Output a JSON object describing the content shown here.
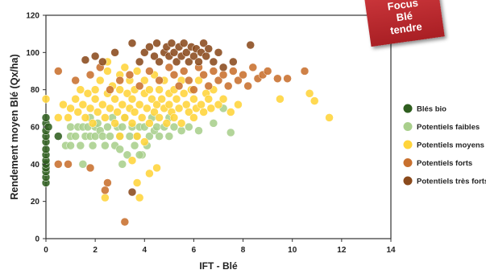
{
  "badge": {
    "line1": "Focus",
    "line2": "Blé",
    "line3": "tendre"
  },
  "colors": {
    "bio": "#2f5e1f",
    "faibles": "#a9cf8c",
    "moyens": "#ffd43a",
    "forts": "#c8702e",
    "tres_forts": "#8a4a1c"
  },
  "chart_data": {
    "type": "scatter",
    "title": "",
    "xlabel": "IFT - Blé",
    "ylabel": "Rendement moyen Blé (Qx/ha)",
    "xlim": [
      0,
      14
    ],
    "ylim": [
      0,
      120
    ],
    "xticks": [
      0,
      2,
      4,
      6,
      8,
      10,
      12,
      14
    ],
    "yticks": [
      0,
      20,
      40,
      60,
      80,
      100,
      120
    ],
    "grid": false,
    "legend_position": "right",
    "series": [
      {
        "name": "Blés bio",
        "color": "#2f5e1f",
        "points": [
          [
            0,
            30
          ],
          [
            0,
            33
          ],
          [
            0,
            36
          ],
          [
            0,
            38
          ],
          [
            0,
            40
          ],
          [
            0,
            42
          ],
          [
            0,
            45
          ],
          [
            0,
            48
          ],
          [
            0,
            52
          ],
          [
            0,
            55
          ],
          [
            0,
            58
          ],
          [
            0,
            62
          ],
          [
            0,
            65
          ],
          [
            0.5,
            55
          ],
          [
            0.1,
            60
          ]
        ]
      },
      {
        "name": "Potentiels faibles",
        "color": "#a9cf8c",
        "points": [
          [
            0.8,
            50
          ],
          [
            1,
            50
          ],
          [
            1,
            55
          ],
          [
            1,
            60
          ],
          [
            1.2,
            55
          ],
          [
            1.3,
            60
          ],
          [
            1.4,
            50
          ],
          [
            1.5,
            60
          ],
          [
            1.6,
            55
          ],
          [
            1.7,
            60
          ],
          [
            1.8,
            55
          ],
          [
            1.8,
            65
          ],
          [
            1.9,
            50
          ],
          [
            2,
            55
          ],
          [
            2,
            60
          ],
          [
            2.1,
            62
          ],
          [
            2.2,
            58
          ],
          [
            2.3,
            55
          ],
          [
            2.4,
            50
          ],
          [
            2.5,
            60
          ],
          [
            2.6,
            55
          ],
          [
            2.7,
            65
          ],
          [
            2.8,
            50
          ],
          [
            2.9,
            60
          ],
          [
            3,
            48
          ],
          [
            3,
            55
          ],
          [
            3.1,
            60
          ],
          [
            3.2,
            65
          ],
          [
            3.3,
            45
          ],
          [
            3.4,
            55
          ],
          [
            3.5,
            60
          ],
          [
            3.6,
            50
          ],
          [
            3.7,
            55
          ],
          [
            3.8,
            60
          ],
          [
            3.9,
            45
          ],
          [
            4,
            60
          ],
          [
            4.1,
            50
          ],
          [
            4.2,
            55
          ],
          [
            4.3,
            65
          ],
          [
            4.4,
            58
          ],
          [
            4.5,
            60
          ],
          [
            4.6,
            55
          ],
          [
            4.8,
            60
          ],
          [
            5,
            55
          ],
          [
            5,
            65
          ],
          [
            5.2,
            60
          ],
          [
            5.5,
            58
          ],
          [
            5.8,
            60
          ],
          [
            6.2,
            58
          ],
          [
            6.8,
            62
          ],
          [
            7.2,
            70
          ],
          [
            7.5,
            57
          ],
          [
            3.1,
            40
          ],
          [
            1.5,
            40
          ],
          [
            3.8,
            45
          ]
        ]
      },
      {
        "name": "Potentiels moyens",
        "color": "#ffd43a",
        "points": [
          [
            0,
            75
          ],
          [
            0.5,
            65
          ],
          [
            0.7,
            72
          ],
          [
            0.9,
            65
          ],
          [
            1,
            70
          ],
          [
            1.2,
            75
          ],
          [
            1.3,
            68
          ],
          [
            1.4,
            80
          ],
          [
            1.5,
            72
          ],
          [
            1.6,
            65
          ],
          [
            1.7,
            78
          ],
          [
            1.8,
            70
          ],
          [
            1.9,
            62
          ],
          [
            2,
            75
          ],
          [
            2,
            80
          ],
          [
            2.1,
            68
          ],
          [
            2.2,
            85
          ],
          [
            2.3,
            72
          ],
          [
            2.4,
            65
          ],
          [
            2.5,
            78
          ],
          [
            2.5,
            90
          ],
          [
            2.6,
            70
          ],
          [
            2.7,
            82
          ],
          [
            2.8,
            75
          ],
          [
            2.8,
            62
          ],
          [
            2.9,
            68
          ],
          [
            3,
            80
          ],
          [
            3,
            88
          ],
          [
            3.1,
            72
          ],
          [
            3.2,
            65
          ],
          [
            3.3,
            78
          ],
          [
            3.4,
            85
          ],
          [
            3.4,
            70
          ],
          [
            3.5,
            62
          ],
          [
            3.5,
            75
          ],
          [
            3.6,
            80
          ],
          [
            3.6,
            68
          ],
          [
            3.7,
            90
          ],
          [
            3.7,
            55
          ],
          [
            3.8,
            72
          ],
          [
            3.9,
            65
          ],
          [
            4,
            78
          ],
          [
            4,
            85
          ],
          [
            4.1,
            70
          ],
          [
            4.2,
            62
          ],
          [
            4.2,
            80
          ],
          [
            4.3,
            75
          ],
          [
            4.4,
            68
          ],
          [
            4.4,
            88
          ],
          [
            4.5,
            72
          ],
          [
            4.6,
            65
          ],
          [
            4.6,
            80
          ],
          [
            4.7,
            75
          ],
          [
            4.8,
            70
          ],
          [
            4.8,
            85
          ],
          [
            4.9,
            62
          ],
          [
            5,
            78
          ],
          [
            5,
            72
          ],
          [
            5.1,
            68
          ],
          [
            5.2,
            80
          ],
          [
            5.2,
            65
          ],
          [
            5.3,
            75
          ],
          [
            5.4,
            70
          ],
          [
            5.5,
            85
          ],
          [
            5.5,
            62
          ],
          [
            5.6,
            78
          ],
          [
            5.7,
            72
          ],
          [
            5.8,
            68
          ],
          [
            5.9,
            80
          ],
          [
            6,
            75
          ],
          [
            6,
            65
          ],
          [
            6.1,
            70
          ],
          [
            6.2,
            85
          ],
          [
            6.3,
            72
          ],
          [
            6.4,
            68
          ],
          [
            6.5,
            78
          ],
          [
            6.6,
            75
          ],
          [
            6.7,
            70
          ],
          [
            6.8,
            80
          ],
          [
            7,
            72
          ],
          [
            7.2,
            75
          ],
          [
            7.5,
            68
          ],
          [
            7.8,
            72
          ],
          [
            2.5,
            95
          ],
          [
            3.2,
            92
          ],
          [
            4.2,
            35
          ],
          [
            3.8,
            22
          ],
          [
            3.7,
            30
          ],
          [
            2.4,
            22
          ],
          [
            3.5,
            42
          ],
          [
            4.5,
            38
          ],
          [
            9.5,
            75
          ],
          [
            10.7,
            78
          ],
          [
            10.9,
            74
          ],
          [
            11.5,
            65
          ],
          [
            3,
            55
          ],
          [
            4,
            52
          ]
        ]
      },
      {
        "name": "Potentiels forts",
        "color": "#c8702e",
        "points": [
          [
            0.5,
            90
          ],
          [
            1.2,
            85
          ],
          [
            1.8,
            88
          ],
          [
            2.2,
            92
          ],
          [
            2.6,
            80
          ],
          [
            3,
            85
          ],
          [
            3.4,
            88
          ],
          [
            3.8,
            82
          ],
          [
            4.2,
            90
          ],
          [
            4.6,
            85
          ],
          [
            5,
            92
          ],
          [
            5.2,
            88
          ],
          [
            5.4,
            82
          ],
          [
            5.6,
            90
          ],
          [
            5.8,
            85
          ],
          [
            6,
            80
          ],
          [
            6.2,
            92
          ],
          [
            6.4,
            88
          ],
          [
            6.6,
            82
          ],
          [
            6.8,
            90
          ],
          [
            7,
            85
          ],
          [
            7.2,
            88
          ],
          [
            7.4,
            82
          ],
          [
            7.6,
            90
          ],
          [
            7.8,
            85
          ],
          [
            8,
            88
          ],
          [
            8.2,
            82
          ],
          [
            8.4,
            92
          ],
          [
            8.6,
            86
          ],
          [
            8.8,
            88
          ],
          [
            9,
            90
          ],
          [
            9.4,
            86
          ],
          [
            9.8,
            86
          ],
          [
            10.5,
            90
          ],
          [
            0.5,
            40
          ],
          [
            0.9,
            40
          ],
          [
            1.8,
            38
          ],
          [
            2.5,
            30
          ],
          [
            2.4,
            26
          ],
          [
            3.2,
            9
          ]
        ]
      },
      {
        "name": "Potentiels très forts",
        "color": "#8a4a1c",
        "points": [
          [
            2.3,
            95
          ],
          [
            2.8,
            100
          ],
          [
            3.5,
            105
          ],
          [
            3.8,
            95
          ],
          [
            4,
            100
          ],
          [
            4.2,
            103
          ],
          [
            4.4,
            98
          ],
          [
            4.5,
            105
          ],
          [
            4.6,
            95
          ],
          [
            4.8,
            100
          ],
          [
            4.9,
            103
          ],
          [
            5,
            98
          ],
          [
            5.1,
            105
          ],
          [
            5.2,
            100
          ],
          [
            5.3,
            95
          ],
          [
            5.4,
            103
          ],
          [
            5.5,
            98
          ],
          [
            5.6,
            105
          ],
          [
            5.7,
            100
          ],
          [
            5.8,
            95
          ],
          [
            5.9,
            103
          ],
          [
            6,
            98
          ],
          [
            6.1,
            102
          ],
          [
            6.2,
            95
          ],
          [
            6.3,
            100
          ],
          [
            6.4,
            105
          ],
          [
            6.5,
            98
          ],
          [
            6.6,
            102
          ],
          [
            6.8,
            95
          ],
          [
            7,
            100
          ],
          [
            7.2,
            92
          ],
          [
            7.6,
            95
          ],
          [
            8.3,
            104
          ],
          [
            1.6,
            96
          ],
          [
            2,
            98
          ],
          [
            3.5,
            25
          ]
        ]
      }
    ]
  }
}
